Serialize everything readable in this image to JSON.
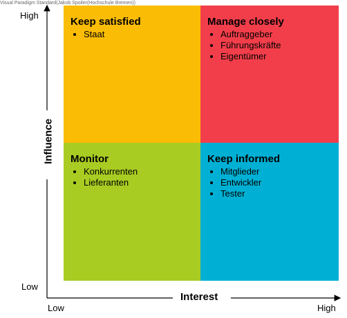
{
  "watermark": "Visual Paradigm Standard(Jakob Spoiler(Hochschule Bremen))",
  "axes": {
    "y_title": "Influence",
    "y_high": "High",
    "y_low": "Low",
    "x_title": "Interest",
    "x_low": "Low",
    "x_high": "High"
  },
  "quadrants": {
    "top_left": {
      "title": "Keep satisfied",
      "color": "#FBBC05",
      "items": [
        "Staat"
      ]
    },
    "top_right": {
      "title": "Manage closely",
      "color": "#F23E4A",
      "items": [
        "Auftraggeber",
        "Führungskräfte",
        "Eigentümer"
      ]
    },
    "bottom_left": {
      "title": "Monitor",
      "color": "#A8CC22",
      "items": [
        "Konkurrenten",
        "Lieferanten"
      ]
    },
    "bottom_right": {
      "title": "Keep informed",
      "color": "#00B0D4",
      "items": [
        "Mitglieder",
        "Entwickler",
        "Tester"
      ]
    }
  }
}
